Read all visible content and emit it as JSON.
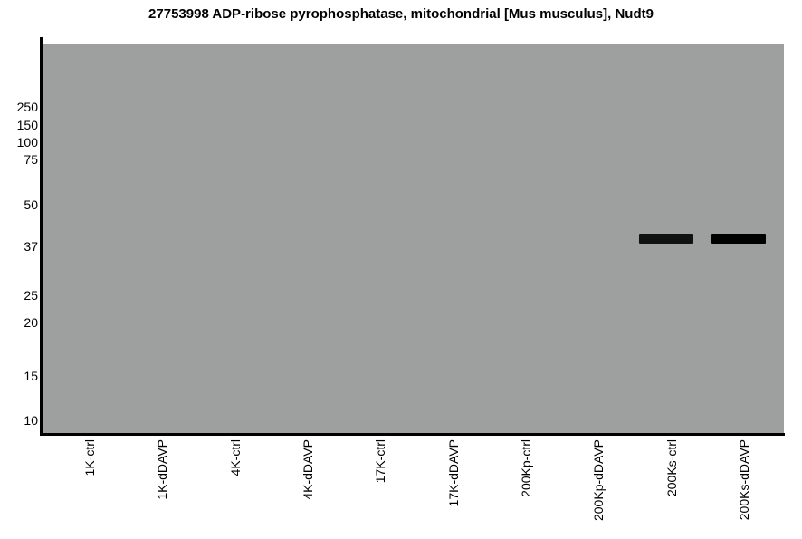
{
  "chart_data": {
    "type": "western-blot-gel",
    "title": "27753998 ADP-ribose pyrophosphatase, mitochondrial [Mus musculus], Nudt9",
    "lanes": [
      "1K-ctrl",
      "1K-dDAVP",
      "4K-ctrl",
      "4K-dDAVP",
      "17K-ctrl",
      "17K-dDAVP",
      "200Kp-ctrl",
      "200Kp-dDAVP",
      "200Ks-ctrl",
      "200Ks-dDAVP"
    ],
    "mw_markers_kda": [
      250,
      150,
      100,
      75,
      50,
      37,
      25,
      20,
      15,
      10
    ],
    "yaxis_unit": "kDa",
    "bands": [
      {
        "lane": "200Ks-ctrl",
        "mw_kda": 39.5,
        "color": "#111111"
      },
      {
        "lane": "200Ks-dDAVP",
        "mw_kda": 39.5,
        "color": "#000000"
      }
    ],
    "legend_position": "none",
    "grid": false
  },
  "colors": {
    "gel_background": "#9e9f9f",
    "axis": "#000000",
    "text": "#000000",
    "page_background": "#ffffff"
  }
}
